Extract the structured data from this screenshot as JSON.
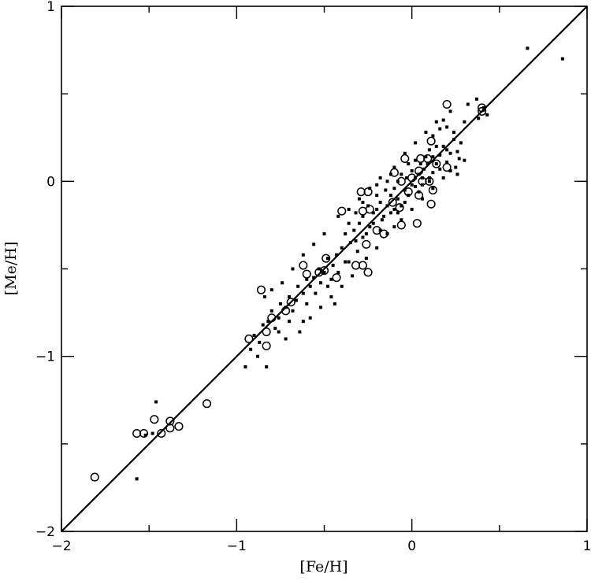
{
  "chart_data": {
    "type": "scatter",
    "title": "",
    "xlabel": "[Fe/H]",
    "ylabel": "[Me/H]",
    "xlim": [
      -2,
      1
    ],
    "ylim": [
      -2,
      1
    ],
    "x_tick_labels": [
      {
        "value": -2,
        "label": "−2"
      },
      {
        "value": -1,
        "label": "−1"
      },
      {
        "value": 0,
        "label": "0"
      },
      {
        "value": 1,
        "label": "1"
      }
    ],
    "y_tick_labels": [
      {
        "value": -2,
        "label": "−2"
      },
      {
        "value": -1,
        "label": "−1"
      },
      {
        "value": 0,
        "label": "0"
      },
      {
        "value": 1,
        "label": "1"
      }
    ],
    "x_minor_step": 0.5,
    "y_minor_step": 0.5,
    "grid": false,
    "reference_line": {
      "x": [
        -2,
        1
      ],
      "y": [
        -2,
        1
      ]
    },
    "series": [
      {
        "marker": "filled-dot",
        "points": [
          [
            0.66,
            0.76
          ],
          [
            0.86,
            0.7
          ],
          [
            0.37,
            0.47
          ],
          [
            0.41,
            0.42
          ],
          [
            0.43,
            0.38
          ],
          [
            0.3,
            0.34
          ],
          [
            0.22,
            0.4
          ],
          [
            0.18,
            0.35
          ],
          [
            0.2,
            0.31
          ],
          [
            0.24,
            0.28
          ],
          [
            0.16,
            0.3
          ],
          [
            0.12,
            0.26
          ],
          [
            0.28,
            0.22
          ],
          [
            0.26,
            0.17
          ],
          [
            0.22,
            0.16
          ],
          [
            0.3,
            0.12
          ],
          [
            0.2,
            0.11
          ],
          [
            0.25,
            0.08
          ],
          [
            0.14,
            0.2
          ],
          [
            0.1,
            0.18
          ],
          [
            0.08,
            0.14
          ],
          [
            0.05,
            0.1
          ],
          [
            0.02,
            0.12
          ],
          [
            -0.02,
            0.1
          ],
          [
            0.07,
            0.07
          ],
          [
            0.04,
            0.04
          ],
          [
            0.0,
            0.06
          ],
          [
            0.12,
            0.05
          ],
          [
            0.16,
            0.07
          ],
          [
            0.18,
            0.02
          ],
          [
            0.1,
            0.0
          ],
          [
            0.06,
            -0.02
          ],
          [
            0.02,
            -0.03
          ],
          [
            -0.03,
            0.02
          ],
          [
            -0.06,
            0.04
          ],
          [
            -0.08,
            0.0
          ],
          [
            -0.04,
            -0.05
          ],
          [
            -0.1,
            -0.04
          ],
          [
            -0.12,
            -0.08
          ],
          [
            -0.08,
            -0.1
          ],
          [
            -0.15,
            -0.05
          ],
          [
            -0.18,
            -0.12
          ],
          [
            -0.14,
            -0.14
          ],
          [
            -0.1,
            -0.16
          ],
          [
            -0.2,
            -0.08
          ],
          [
            -0.22,
            -0.18
          ],
          [
            -0.17,
            -0.22
          ],
          [
            -0.25,
            -0.14
          ],
          [
            -0.28,
            -0.2
          ],
          [
            -0.24,
            -0.26
          ],
          [
            -0.3,
            -0.24
          ],
          [
            -0.33,
            -0.28
          ],
          [
            -0.28,
            -0.32
          ],
          [
            -0.35,
            -0.35
          ],
          [
            -0.38,
            -0.3
          ],
          [
            -0.31,
            -0.4
          ],
          [
            -0.4,
            -0.38
          ],
          [
            -0.43,
            -0.42
          ],
          [
            -0.36,
            -0.46
          ],
          [
            -0.45,
            -0.48
          ],
          [
            -0.48,
            -0.44
          ],
          [
            -0.5,
            -0.52
          ],
          [
            -0.53,
            -0.5
          ],
          [
            -0.56,
            -0.55
          ],
          [
            -0.52,
            -0.58
          ],
          [
            -0.58,
            -0.6
          ],
          [
            -0.6,
            -0.56
          ],
          [
            -0.62,
            -0.64
          ],
          [
            -0.65,
            -0.6
          ],
          [
            -0.66,
            -0.68
          ],
          [
            -0.7,
            -0.66
          ],
          [
            -0.72,
            -0.72
          ],
          [
            -0.68,
            -0.74
          ],
          [
            -0.75,
            -0.7
          ],
          [
            -0.76,
            -0.78
          ],
          [
            -0.8,
            -0.74
          ],
          [
            -0.82,
            -0.8
          ],
          [
            -0.78,
            -0.84
          ],
          [
            -0.85,
            -0.82
          ],
          [
            -0.9,
            -0.88
          ],
          [
            -0.87,
            -0.92
          ],
          [
            -0.92,
            -0.96
          ],
          [
            -0.88,
            -1.0
          ],
          [
            -0.95,
            -1.06
          ],
          [
            -0.83,
            -1.06
          ],
          [
            -0.64,
            -0.86
          ],
          [
            -0.58,
            -0.78
          ],
          [
            -0.52,
            -0.72
          ],
          [
            -0.46,
            -0.66
          ],
          [
            -0.4,
            -0.6
          ],
          [
            -0.34,
            -0.54
          ],
          [
            -0.26,
            -0.44
          ],
          [
            -0.2,
            -0.38
          ],
          [
            -0.14,
            -0.3
          ],
          [
            -0.06,
            -0.22
          ],
          [
            0.0,
            -0.16
          ],
          [
            0.06,
            -0.1
          ],
          [
            0.12,
            -0.04
          ],
          [
            -0.42,
            -0.2
          ],
          [
            -0.36,
            -0.16
          ],
          [
            -0.3,
            -0.1
          ],
          [
            -0.24,
            -0.04
          ],
          [
            -0.18,
            0.02
          ],
          [
            -0.1,
            0.08
          ],
          [
            -0.04,
            0.16
          ],
          [
            0.02,
            0.22
          ],
          [
            0.08,
            0.28
          ],
          [
            0.14,
            0.34
          ],
          [
            -0.62,
            -0.42
          ],
          [
            -0.56,
            -0.36
          ],
          [
            -0.5,
            -0.3
          ],
          [
            -0.68,
            -0.5
          ],
          [
            -0.74,
            -0.58
          ],
          [
            -0.8,
            -0.62
          ],
          [
            -0.84,
            -0.66
          ],
          [
            -0.46,
            -0.56
          ],
          [
            -0.42,
            -0.52
          ],
          [
            -0.38,
            -0.46
          ],
          [
            -0.32,
            -0.34
          ],
          [
            -0.26,
            -0.3
          ],
          [
            -0.22,
            -0.24
          ],
          [
            -0.16,
            -0.2
          ],
          [
            -0.12,
            -0.18
          ],
          [
            -0.06,
            -0.14
          ],
          [
            -0.02,
            -0.08
          ],
          [
            0.04,
            -0.06
          ],
          [
            0.1,
            0.02
          ],
          [
            0.14,
            0.1
          ],
          [
            0.18,
            0.2
          ],
          [
            0.24,
            0.24
          ],
          [
            0.27,
            0.13
          ],
          [
            0.32,
            0.44
          ],
          [
            0.38,
            0.36
          ],
          [
            -1.46,
            -1.26
          ],
          [
            -1.48,
            -1.44
          ],
          [
            -1.57,
            -1.7
          ],
          [
            -1.52,
            -1.45
          ],
          [
            -0.55,
            -0.64
          ],
          [
            -0.48,
            -0.6
          ],
          [
            -0.44,
            -0.7
          ],
          [
            -0.6,
            -0.7
          ],
          [
            -0.7,
            -0.8
          ],
          [
            -0.76,
            -0.86
          ],
          [
            -0.72,
            -0.9
          ],
          [
            -0.62,
            -0.8
          ],
          [
            -0.36,
            -0.24
          ],
          [
            -0.32,
            -0.18
          ],
          [
            -0.28,
            -0.12
          ],
          [
            -0.2,
            -0.16
          ],
          [
            -0.18,
            -0.28
          ],
          [
            -0.1,
            -0.26
          ],
          [
            -0.08,
            -0.18
          ],
          [
            -0.04,
            -0.12
          ],
          [
            0.0,
            -0.02
          ],
          [
            0.02,
            0.02
          ],
          [
            0.06,
            0.02
          ],
          [
            0.09,
            0.1
          ],
          [
            0.12,
            0.14
          ],
          [
            0.16,
            0.15
          ],
          [
            0.2,
            0.18
          ],
          [
            0.22,
            0.06
          ],
          [
            0.26,
            0.04
          ],
          [
            -0.14,
            0.0
          ],
          [
            -0.12,
            0.04
          ],
          [
            -0.2,
            -0.02
          ]
        ]
      },
      {
        "marker": "open-circle",
        "points": [
          [
            0.2,
            0.44
          ],
          [
            0.4,
            0.42
          ],
          [
            0.4,
            0.4
          ],
          [
            0.11,
            0.23
          ],
          [
            0.05,
            0.13
          ],
          [
            -0.04,
            0.13
          ],
          [
            0.09,
            0.13
          ],
          [
            0.14,
            0.1
          ],
          [
            0.2,
            0.08
          ],
          [
            0.04,
            0.06
          ],
          [
            -0.1,
            0.05
          ],
          [
            0.0,
            0.02
          ],
          [
            -0.06,
            0.0
          ],
          [
            0.06,
            0.0
          ],
          [
            0.1,
            0.0
          ],
          [
            0.12,
            -0.05
          ],
          [
            -0.02,
            -0.06
          ],
          [
            0.04,
            -0.08
          ],
          [
            -0.29,
            -0.06
          ],
          [
            -0.25,
            -0.06
          ],
          [
            -0.24,
            -0.16
          ],
          [
            -0.28,
            -0.17
          ],
          [
            -0.11,
            -0.12
          ],
          [
            -0.07,
            -0.15
          ],
          [
            0.11,
            -0.13
          ],
          [
            -0.4,
            -0.17
          ],
          [
            -0.2,
            -0.28
          ],
          [
            -0.06,
            -0.25
          ],
          [
            0.03,
            -0.24
          ],
          [
            -0.16,
            -0.3
          ],
          [
            -0.26,
            -0.36
          ],
          [
            -0.49,
            -0.44
          ],
          [
            -0.32,
            -0.48
          ],
          [
            -0.28,
            -0.48
          ],
          [
            -0.43,
            -0.55
          ],
          [
            -0.5,
            -0.51
          ],
          [
            -0.53,
            -0.52
          ],
          [
            -0.25,
            -0.52
          ],
          [
            -0.62,
            -0.48
          ],
          [
            -0.6,
            -0.53
          ],
          [
            -0.86,
            -0.62
          ],
          [
            -0.69,
            -0.69
          ],
          [
            -0.72,
            -0.74
          ],
          [
            -0.8,
            -0.78
          ],
          [
            -0.83,
            -0.86
          ],
          [
            -0.93,
            -0.9
          ],
          [
            -0.83,
            -0.94
          ],
          [
            -1.17,
            -1.27
          ],
          [
            -1.33,
            -1.4
          ],
          [
            -1.38,
            -1.37
          ],
          [
            -1.38,
            -1.41
          ],
          [
            -1.47,
            -1.36
          ],
          [
            -1.57,
            -1.44
          ],
          [
            -1.53,
            -1.44
          ],
          [
            -1.43,
            -1.44
          ],
          [
            -1.81,
            -1.69
          ]
        ]
      }
    ]
  }
}
